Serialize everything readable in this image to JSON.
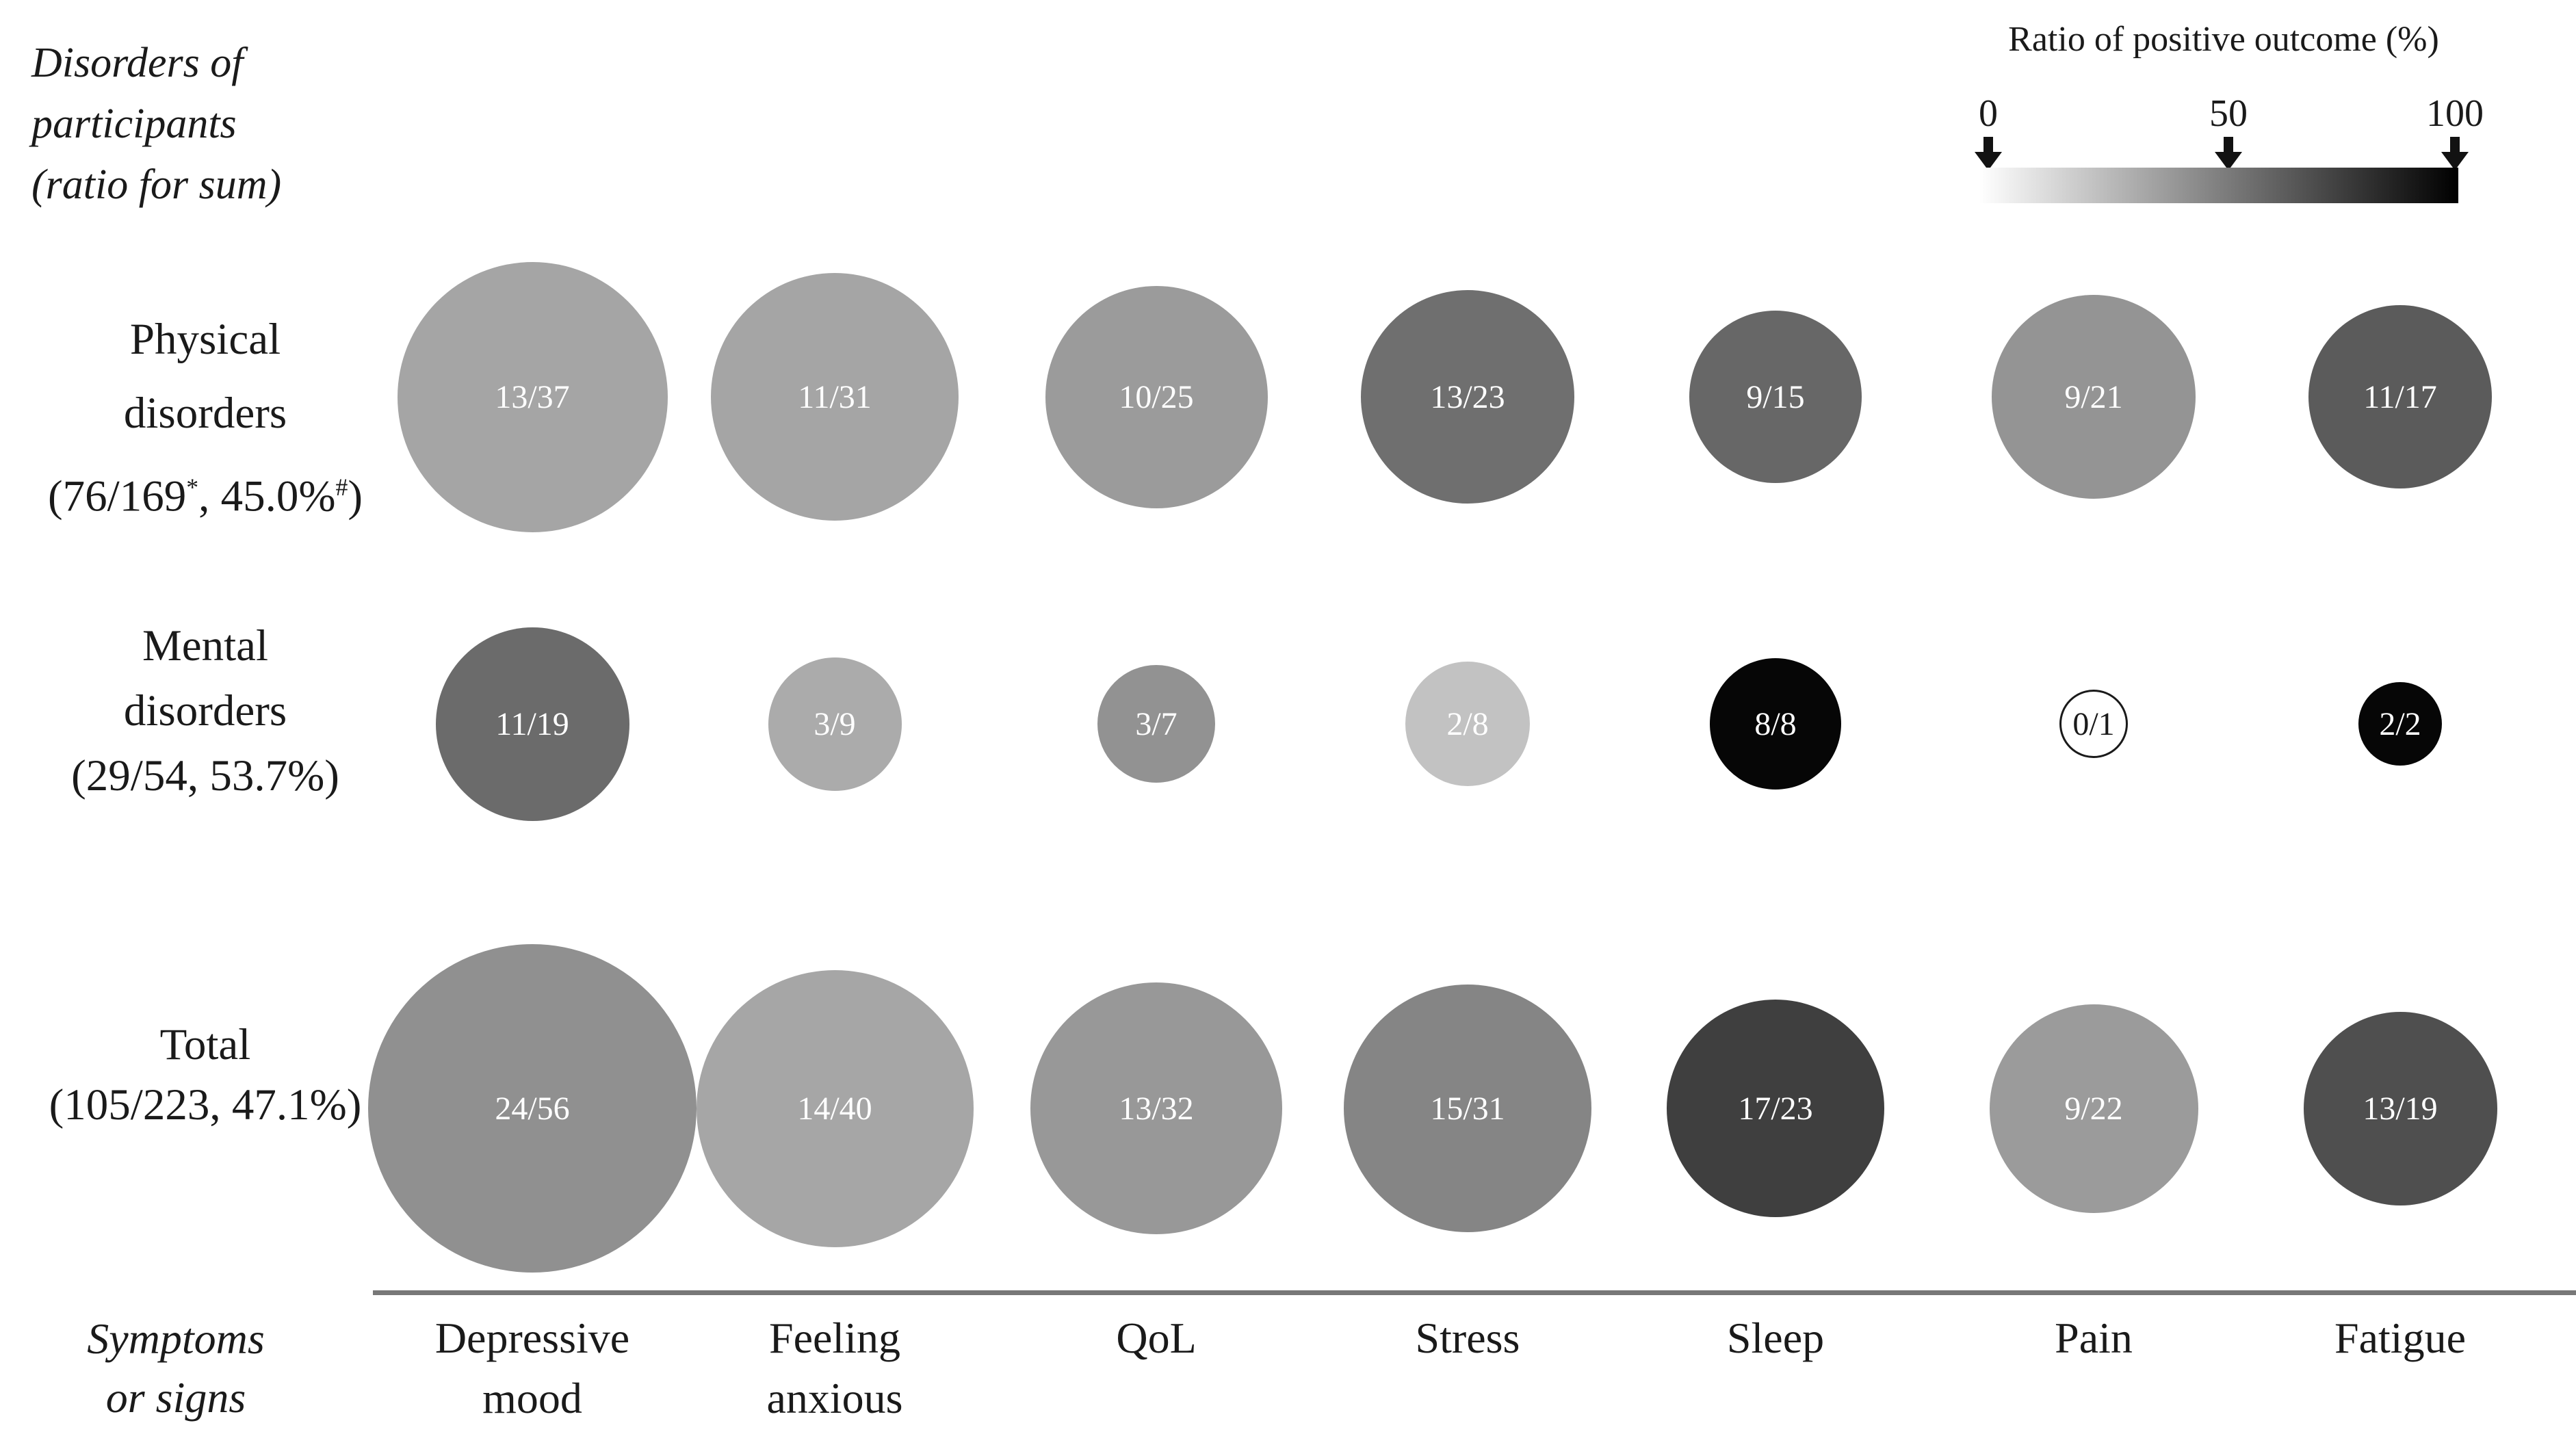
{
  "corner_title": {
    "lines": [
      "Disorders of",
      "participants",
      "(ratio for sum)"
    ]
  },
  "legend": {
    "title": "Ratio of positive outcome (%)",
    "ticks": [
      {
        "label": "0"
      },
      {
        "label": "50"
      },
      {
        "label": "100"
      }
    ],
    "gradient_start_color": "#ffffff",
    "gradient_end_color": "#000000"
  },
  "bottom_axis_title": {
    "lines": [
      "Symptoms",
      "or signs"
    ]
  },
  "chart_data": {
    "type": "bubble",
    "title": "Ratio of positive outcome (%) by disorder group and symptom",
    "value_format": "positive outcomes / number of studies (n/N); bubble area ~ N; bubble darkness ~ ratio of positive outcome (0% = white, 100% = black)",
    "legend_position": "top-right",
    "grid": false,
    "columns": [
      {
        "key": "depressive-mood",
        "label": "Depressive mood",
        "label_lines": [
          "Depressive",
          "mood"
        ]
      },
      {
        "key": "feeling-anxious",
        "label": "Feeling anxious",
        "label_lines": [
          "Feeling",
          "anxious"
        ]
      },
      {
        "key": "qol",
        "label": "QoL",
        "label_lines": [
          "QoL"
        ]
      },
      {
        "key": "stress",
        "label": "Stress",
        "label_lines": [
          "Stress"
        ]
      },
      {
        "key": "sleep",
        "label": "Sleep",
        "label_lines": [
          "Sleep"
        ]
      },
      {
        "key": "pain",
        "label": "Pain",
        "label_lines": [
          "Pain"
        ]
      },
      {
        "key": "fatigue",
        "label": "Fatigue",
        "label_lines": [
          "Fatigue"
        ]
      }
    ],
    "rows": [
      {
        "key": "physical-disorders",
        "label": "Physical disorders (76/169*, 45.0%#)",
        "header_segments": [
          [
            {
              "t": "Physical"
            }
          ],
          [
            {
              "t": "disorders"
            }
          ],
          [
            {
              "t": "(76/169"
            },
            {
              "t": "*",
              "sup": true
            },
            {
              "t": ", 45.0%"
            },
            {
              "t": "#",
              "sup": true
            },
            {
              "t": ")"
            }
          ]
        ],
        "cells": [
          {
            "label": "13/37",
            "num": 13,
            "den": 37,
            "pct": 35.1,
            "color": "#a5a5a5",
            "text_color": "#ffffff",
            "d": 395
          },
          {
            "label": "11/31",
            "num": 11,
            "den": 31,
            "pct": 35.5,
            "color": "#a5a5a5",
            "text_color": "#ffffff",
            "d": 362
          },
          {
            "label": "10/25",
            "num": 10,
            "den": 25,
            "pct": 40.0,
            "color": "#9b9b9b",
            "text_color": "#ffffff",
            "d": 325
          },
          {
            "label": "13/23",
            "num": 13,
            "den": 23,
            "pct": 56.5,
            "color": "#6f6f6f",
            "text_color": "#ffffff",
            "d": 312
          },
          {
            "label": "9/15",
            "num": 9,
            "den": 15,
            "pct": 60.0,
            "color": "#676767",
            "text_color": "#ffffff",
            "d": 252
          },
          {
            "label": "9/21",
            "num": 9,
            "den": 21,
            "pct": 42.9,
            "color": "#949494",
            "text_color": "#ffffff",
            "d": 298
          },
          {
            "label": "11/17",
            "num": 11,
            "den": 17,
            "pct": 64.7,
            "color": "#5b5b5b",
            "text_color": "#ffffff",
            "d": 268
          }
        ]
      },
      {
        "key": "mental-disorders",
        "label": "Mental disorders (29/54, 53.7%)",
        "header_segments": [
          [
            {
              "t": "Mental"
            }
          ],
          [
            {
              "t": "disorders"
            }
          ],
          [
            {
              "t": "(29/54, 53.7%)"
            }
          ]
        ],
        "cells": [
          {
            "label": "11/19",
            "num": 11,
            "den": 19,
            "pct": 57.9,
            "color": "#6b6b6b",
            "text_color": "#ffffff",
            "d": 283
          },
          {
            "label": "3/9",
            "num": 3,
            "den": 9,
            "pct": 33.3,
            "color": "#ababab",
            "text_color": "#ffffff",
            "d": 195
          },
          {
            "label": "3/7",
            "num": 3,
            "den": 7,
            "pct": 42.9,
            "color": "#929292",
            "text_color": "#ffffff",
            "d": 172
          },
          {
            "label": "2/8",
            "num": 2,
            "den": 8,
            "pct": 25.0,
            "color": "#c2c2c2",
            "text_color": "#ffffff",
            "d": 182
          },
          {
            "label": "8/8",
            "num": 8,
            "den": 8,
            "pct": 100.0,
            "color": "#060606",
            "text_color": "#ffffff",
            "d": 192
          },
          {
            "label": "0/1",
            "num": 0,
            "den": 1,
            "pct": 0.0,
            "color": "#ffffff",
            "text_color": "#1a1a1a",
            "d": 94,
            "outlined": true
          },
          {
            "label": "2/2",
            "num": 2,
            "den": 2,
            "pct": 100.0,
            "color": "#060606",
            "text_color": "#ffffff",
            "d": 122
          }
        ]
      },
      {
        "key": "total",
        "label": "Total (105/223, 47.1%)",
        "header_segments": [
          [
            {
              "t": "Total"
            }
          ],
          [
            {
              "t": "(105/223, 47.1%)"
            }
          ]
        ],
        "cells": [
          {
            "label": "24/56",
            "num": 24,
            "den": 56,
            "pct": 42.9,
            "color": "#909090",
            "text_color": "#ffffff",
            "d": 480
          },
          {
            "label": "14/40",
            "num": 14,
            "den": 40,
            "pct": 35.0,
            "color": "#a6a6a6",
            "text_color": "#ffffff",
            "d": 405
          },
          {
            "label": "13/32",
            "num": 13,
            "den": 32,
            "pct": 40.6,
            "color": "#989898",
            "text_color": "#ffffff",
            "d": 368
          },
          {
            "label": "15/31",
            "num": 15,
            "den": 31,
            "pct": 48.4,
            "color": "#858585",
            "text_color": "#ffffff",
            "d": 362
          },
          {
            "label": "17/23",
            "num": 17,
            "den": 23,
            "pct": 73.9,
            "color": "#3f3f3f",
            "text_color": "#ffffff",
            "d": 318
          },
          {
            "label": "9/22",
            "num": 9,
            "den": 22,
            "pct": 40.9,
            "color": "#9b9b9b",
            "text_color": "#ffffff",
            "d": 305
          },
          {
            "label": "13/19",
            "num": 13,
            "den": 19,
            "pct": 68.4,
            "color": "#4f4f4f",
            "text_color": "#ffffff",
            "d": 283
          }
        ]
      }
    ],
    "layout": {
      "col_centers_x": [
        778,
        1220,
        1690,
        2145,
        2595,
        3060,
        3508
      ],
      "row_centers_y": [
        580,
        1058,
        1620
      ]
    }
  }
}
